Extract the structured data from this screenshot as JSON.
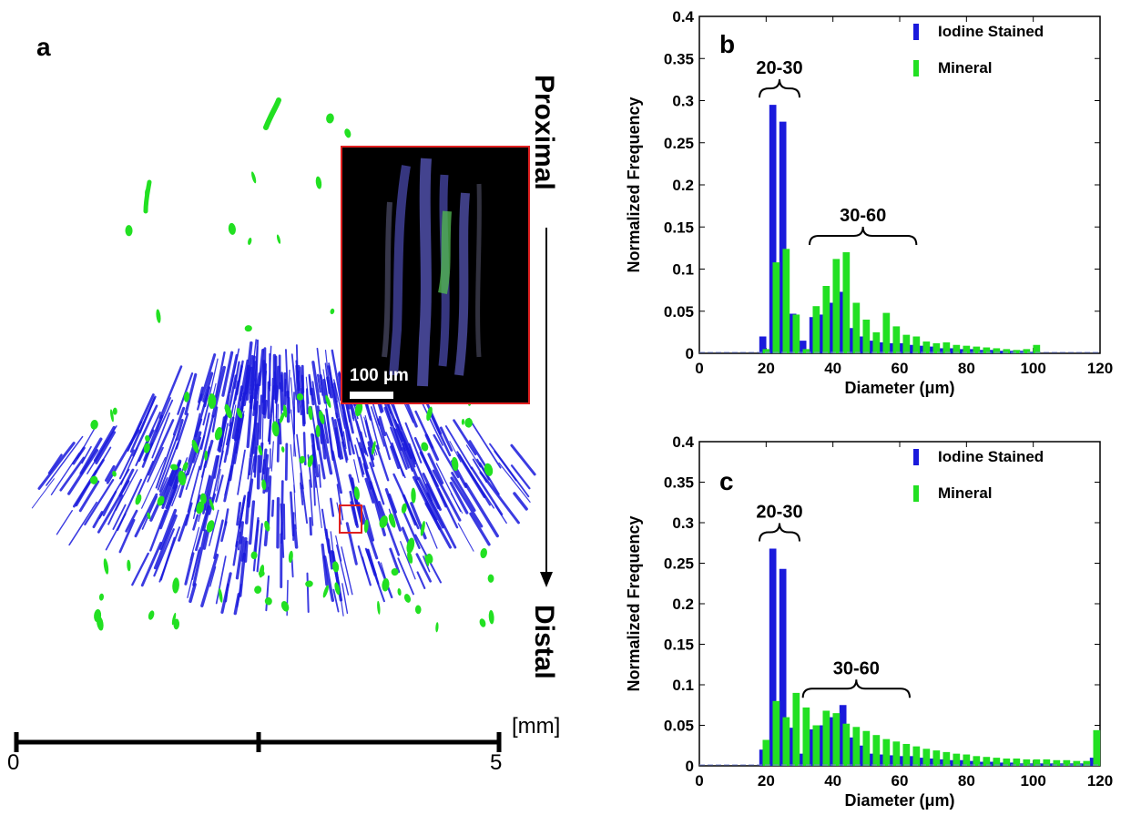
{
  "panel_a": {
    "label": "a",
    "proximal_label": "Proximal",
    "distal_label": "Distal",
    "scale_unit": "[mm]",
    "scale_ticks": [
      "0",
      "5"
    ],
    "inset_scale": "100 µm"
  },
  "colors": {
    "iodine": "#1a1adc",
    "mineral": "#22e022",
    "inset_border": "#e02020"
  },
  "chart_data": [
    {
      "panel": "b",
      "type": "bar",
      "ylabel": "Normalized Frequency",
      "xlabel": "Diameter (μm)",
      "xlim": [
        0,
        120
      ],
      "ylim": [
        0,
        0.4
      ],
      "xticks": [
        "0",
        "20",
        "40",
        "60",
        "80",
        "100",
        "120"
      ],
      "yticks": [
        "0",
        "0.05",
        "0.1",
        "0.15",
        "0.2",
        "0.25",
        "0.3",
        "0.35",
        "0.4"
      ],
      "legend_position": "top-right",
      "annotations": [
        {
          "label": "20-30",
          "from": 18,
          "to": 30
        },
        {
          "label": "30-60",
          "from": 33,
          "to": 65
        }
      ],
      "series": [
        {
          "name": "Iodine Stained",
          "x": [
            19,
            22,
            25,
            28,
            31,
            34,
            37,
            40,
            43,
            46,
            49,
            52,
            55,
            58,
            61,
            64,
            67,
            70,
            73,
            76,
            79,
            82,
            85,
            88,
            91,
            94,
            97,
            100
          ],
          "values": [
            0.02,
            0.295,
            0.275,
            0.047,
            0.015,
            0.043,
            0.046,
            0.06,
            0.073,
            0.03,
            0.02,
            0.015,
            0.013,
            0.012,
            0.012,
            0.01,
            0.009,
            0.008,
            0.006,
            0.006,
            0.005,
            0.005,
            0.004,
            0.004,
            0.003,
            0.003,
            0.003,
            0.002
          ]
        },
        {
          "name": "Mineral",
          "x": [
            20,
            23,
            26,
            29,
            32,
            35,
            38,
            41,
            44,
            47,
            50,
            53,
            56,
            59,
            62,
            65,
            68,
            71,
            74,
            77,
            80,
            83,
            86,
            89,
            92,
            95,
            98,
            101
          ],
          "values": [
            0.005,
            0.108,
            0.124,
            0.046,
            0.005,
            0.056,
            0.08,
            0.112,
            0.12,
            0.06,
            0.04,
            0.025,
            0.048,
            0.032,
            0.022,
            0.02,
            0.014,
            0.012,
            0.013,
            0.01,
            0.009,
            0.008,
            0.007,
            0.006,
            0.005,
            0.004,
            0.005,
            0.01
          ]
        }
      ]
    },
    {
      "panel": "c",
      "type": "bar",
      "ylabel": "Normalized Frequency",
      "xlabel": "Diameter (μm)",
      "xlim": [
        0,
        120
      ],
      "ylim": [
        0,
        0.4
      ],
      "xticks": [
        "0",
        "20",
        "40",
        "60",
        "80",
        "100",
        "120"
      ],
      "yticks": [
        "0",
        "0.05",
        "0.1",
        "0.15",
        "0.2",
        "0.25",
        "0.3",
        "0.35",
        "0.4"
      ],
      "legend_position": "top-right",
      "annotations": [
        {
          "label": "20-30",
          "from": 18,
          "to": 30
        },
        {
          "label": "30-60",
          "from": 31,
          "to": 63
        }
      ],
      "series": [
        {
          "name": "Iodine Stained",
          "x": [
            19,
            22,
            25,
            28,
            31,
            34,
            37,
            40,
            43,
            46,
            49,
            52,
            55,
            58,
            61,
            64,
            67,
            70,
            73,
            76,
            79,
            82,
            85,
            88,
            91,
            94,
            97,
            100,
            103,
            106,
            109,
            112,
            115,
            118
          ],
          "values": [
            0.02,
            0.268,
            0.243,
            0.047,
            0.015,
            0.045,
            0.05,
            0.06,
            0.075,
            0.035,
            0.025,
            0.015,
            0.014,
            0.013,
            0.012,
            0.012,
            0.01,
            0.009,
            0.008,
            0.007,
            0.007,
            0.006,
            0.005,
            0.005,
            0.004,
            0.004,
            0.003,
            0.003,
            0.003,
            0.003,
            0.003,
            0.003,
            0.003,
            0.01
          ]
        },
        {
          "name": "Mineral",
          "x": [
            20,
            23,
            26,
            29,
            32,
            35,
            38,
            41,
            44,
            47,
            50,
            53,
            56,
            59,
            62,
            65,
            68,
            71,
            74,
            77,
            80,
            83,
            86,
            89,
            92,
            95,
            98,
            101,
            104,
            107,
            110,
            113,
            116,
            119
          ],
          "values": [
            0.032,
            0.08,
            0.06,
            0.09,
            0.072,
            0.05,
            0.068,
            0.065,
            0.052,
            0.048,
            0.043,
            0.038,
            0.033,
            0.03,
            0.027,
            0.024,
            0.021,
            0.019,
            0.017,
            0.015,
            0.014,
            0.012,
            0.011,
            0.01,
            0.009,
            0.009,
            0.008,
            0.008,
            0.008,
            0.007,
            0.007,
            0.006,
            0.006,
            0.044
          ]
        }
      ]
    }
  ]
}
